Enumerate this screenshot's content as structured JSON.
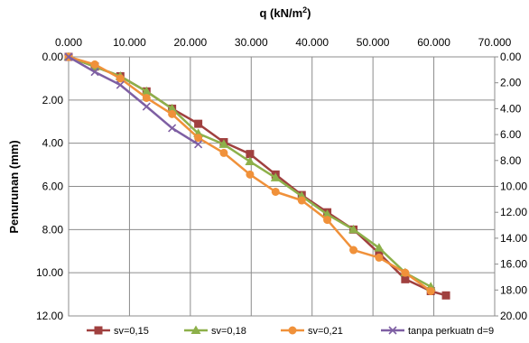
{
  "chart_data": {
    "type": "line",
    "xlabel": "q (kN/m",
    "xlabel_sup": "2",
    "xlabel_end": ")",
    "ylabel": "Penurunan (mm)",
    "x_axis_position": "top",
    "y_inverted": true,
    "xlim": [
      0,
      70
    ],
    "ylim": [
      0,
      12
    ],
    "y2lim": [
      0,
      20
    ],
    "x_ticks": [
      "0.000",
      "10.000",
      "20.000",
      "30.000",
      "40.000",
      "50.000",
      "60.000",
      "70.000"
    ],
    "y_ticks": [
      "0.00",
      "2.00",
      "4.00",
      "6.00",
      "8.00",
      "10.00",
      "12.00"
    ],
    "y2_ticks": [
      "0.00",
      "2.00",
      "4.00",
      "6.00",
      "8.00",
      "10.00",
      "12.00",
      "14.00",
      "16.00",
      "18.00",
      "20.00"
    ],
    "grid": true,
    "legend_position": "bottom",
    "series": [
      {
        "name": "sv=0,15",
        "color": "#A0403F",
        "marker": "square",
        "points": [
          [
            0.0,
            0.0
          ],
          [
            4.3,
            0.45
          ],
          [
            8.5,
            0.9
          ],
          [
            12.8,
            1.6
          ],
          [
            17.0,
            2.4
          ],
          [
            21.3,
            3.1
          ],
          [
            25.5,
            3.95
          ],
          [
            29.8,
            4.5
          ],
          [
            34.0,
            5.45
          ],
          [
            38.3,
            6.4
          ],
          [
            42.5,
            7.2
          ],
          [
            46.8,
            8.0
          ],
          [
            51.0,
            9.1
          ],
          [
            55.3,
            10.3
          ],
          [
            59.5,
            10.85
          ],
          [
            62.0,
            11.05
          ]
        ]
      },
      {
        "name": "sv=0,18",
        "color": "#8DB04A",
        "marker": "triangle",
        "points": [
          [
            0.0,
            0.0
          ],
          [
            4.3,
            0.45
          ],
          [
            8.5,
            0.9
          ],
          [
            12.8,
            1.6
          ],
          [
            17.0,
            2.4
          ],
          [
            21.3,
            3.55
          ],
          [
            25.5,
            4.05
          ],
          [
            29.8,
            4.85
          ],
          [
            34.0,
            5.6
          ],
          [
            38.3,
            6.45
          ],
          [
            42.5,
            7.3
          ],
          [
            46.8,
            8.0
          ],
          [
            51.0,
            8.85
          ],
          [
            55.3,
            10.0
          ],
          [
            59.5,
            10.65
          ]
        ]
      },
      {
        "name": "sv=0,21",
        "color": "#F0913A",
        "marker": "circle",
        "points": [
          [
            0.0,
            0.0
          ],
          [
            4.3,
            0.35
          ],
          [
            8.5,
            1.0
          ],
          [
            12.8,
            1.9
          ],
          [
            17.0,
            2.65
          ],
          [
            21.3,
            3.75
          ],
          [
            25.5,
            4.45
          ],
          [
            29.8,
            5.45
          ],
          [
            34.0,
            6.25
          ],
          [
            38.3,
            6.65
          ],
          [
            42.5,
            7.55
          ],
          [
            46.8,
            8.95
          ],
          [
            51.0,
            9.3
          ],
          [
            55.3,
            10.0
          ],
          [
            59.5,
            10.85
          ]
        ]
      },
      {
        "name": "tanpa perkuatn d=9",
        "color": "#7E5FA3",
        "marker": "x",
        "points": [
          [
            0.0,
            0.0
          ],
          [
            4.3,
            0.7
          ],
          [
            8.5,
            1.3
          ],
          [
            12.8,
            2.3
          ],
          [
            17.0,
            3.3
          ],
          [
            21.3,
            4.05
          ]
        ]
      }
    ]
  }
}
